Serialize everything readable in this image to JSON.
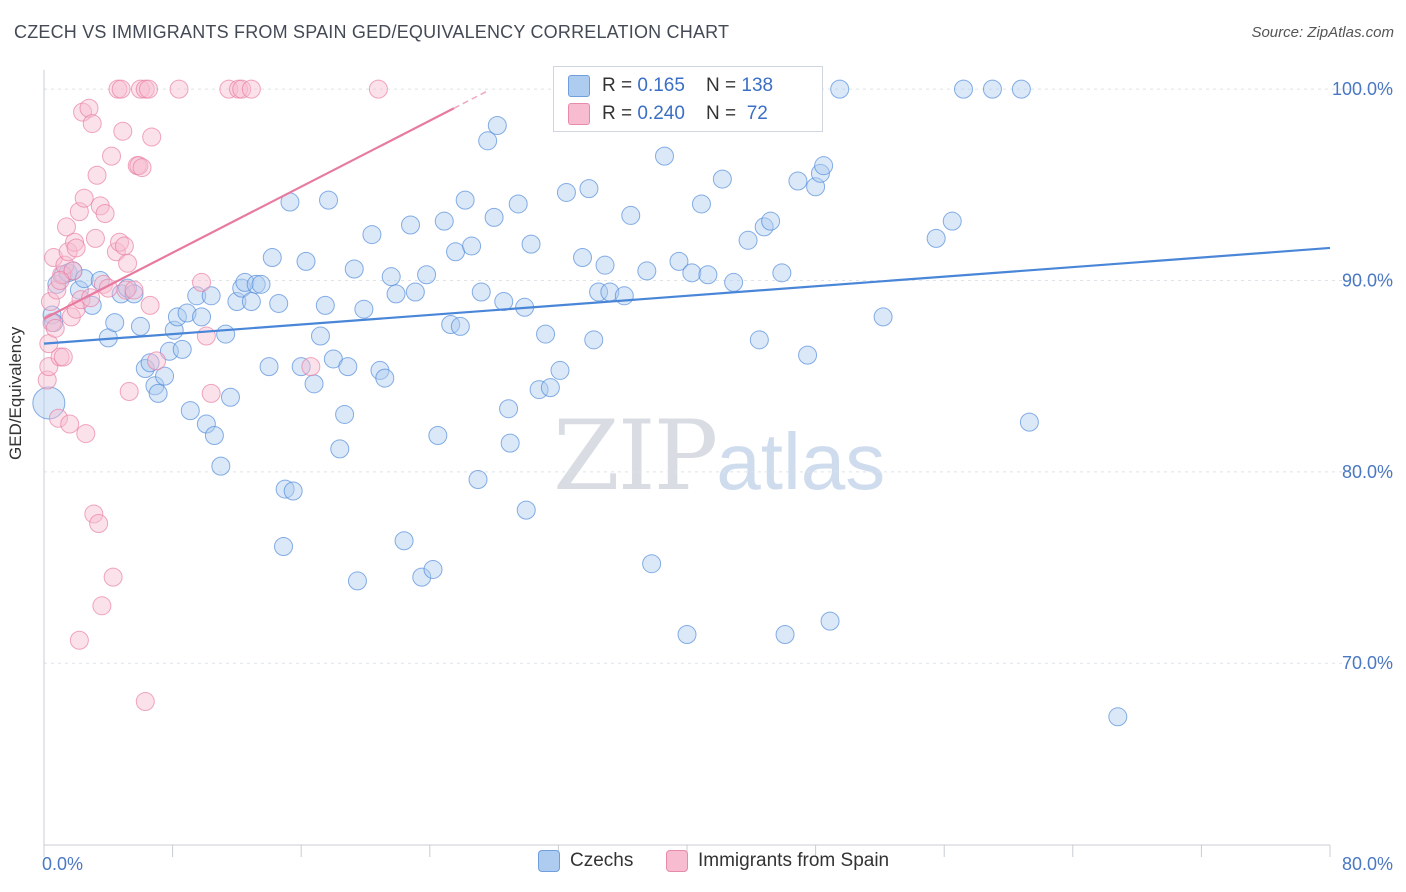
{
  "title": "CZECH VS IMMIGRANTS FROM SPAIN GED/EQUIVALENCY CORRELATION CHART",
  "source": "Source: ZipAtlas.com",
  "watermark": {
    "zip": "ZIP",
    "atlas": "atlas"
  },
  "legend": {
    "rows": [
      {
        "r_label": "R = ",
        "r_value": "0.165",
        "n_label": "N = ",
        "n_value": "138",
        "color": "#aecbf0"
      },
      {
        "r_label": "R = ",
        "r_value": "0.240",
        "n_label": "N = ",
        "n_value": " 72",
        "color": "#f7bcd0"
      }
    ]
  },
  "bottom_legend": [
    {
      "label": "Czechs",
      "color": "#aecbf0"
    },
    {
      "label": "Immigrants from Spain",
      "color": "#f7bcd0"
    }
  ],
  "chart_data": {
    "type": "scatter",
    "title": "CZECH VS IMMIGRANTS FROM SPAIN GED/EQUIVALENCY CORRELATION CHART",
    "xlabel": "",
    "ylabel": "GED/Equivalency",
    "xlim": [
      0,
      80
    ],
    "ylim": [
      60.5,
      101
    ],
    "x_tick_labels": [
      "0.0%",
      "80.0%"
    ],
    "y_ticks": [
      70,
      80,
      90,
      100
    ],
    "y_tick_labels": [
      "70.0%",
      "80.0%",
      "90.0%",
      "100.0%"
    ],
    "grid": true,
    "series": [
      {
        "name": "Czechs",
        "color": "#4a86d8",
        "fill": "#aecbf0",
        "trend": {
          "x0": 0,
          "y0": 86.7,
          "x1": 80,
          "y1": 91.7
        },
        "points": [
          [
            0.3,
            83.6
          ],
          [
            0.5,
            88.2
          ],
          [
            0.6,
            87.8
          ],
          [
            0.8,
            89.8
          ],
          [
            1.2,
            90.3
          ],
          [
            1.5,
            90.4
          ],
          [
            1.8,
            90.5
          ],
          [
            2.2,
            89.5
          ],
          [
            2.5,
            90.1
          ],
          [
            3.0,
            88.7
          ],
          [
            3.5,
            90.0
          ],
          [
            4.0,
            87.0
          ],
          [
            4.4,
            87.8
          ],
          [
            4.8,
            89.3
          ],
          [
            5.2,
            89.6
          ],
          [
            5.6,
            89.3
          ],
          [
            6.0,
            87.6
          ],
          [
            6.3,
            85.4
          ],
          [
            6.6,
            85.7
          ],
          [
            6.9,
            84.5
          ],
          [
            7.1,
            84.1
          ],
          [
            7.5,
            85.0
          ],
          [
            7.8,
            86.3
          ],
          [
            8.1,
            87.4
          ],
          [
            8.3,
            88.1
          ],
          [
            8.6,
            86.4
          ],
          [
            8.9,
            88.3
          ],
          [
            9.1,
            83.2
          ],
          [
            9.5,
            89.2
          ],
          [
            9.8,
            88.1
          ],
          [
            10.1,
            82.5
          ],
          [
            10.4,
            89.2
          ],
          [
            10.6,
            81.9
          ],
          [
            11.0,
            80.3
          ],
          [
            11.3,
            87.2
          ],
          [
            11.6,
            83.9
          ],
          [
            12.0,
            88.9
          ],
          [
            12.3,
            89.6
          ],
          [
            12.5,
            89.9
          ],
          [
            12.9,
            88.9
          ],
          [
            13.2,
            89.8
          ],
          [
            13.5,
            89.8
          ],
          [
            14.0,
            85.5
          ],
          [
            14.2,
            91.2
          ],
          [
            14.6,
            88.8
          ],
          [
            15.0,
            79.1
          ],
          [
            15.3,
            94.1
          ],
          [
            15.5,
            79.0
          ],
          [
            14.9,
            76.1
          ],
          [
            16.0,
            85.5
          ],
          [
            16.3,
            91.0
          ],
          [
            16.8,
            84.6
          ],
          [
            17.2,
            87.1
          ],
          [
            17.5,
            88.7
          ],
          [
            17.7,
            94.2
          ],
          [
            18.0,
            85.9
          ],
          [
            18.4,
            81.2
          ],
          [
            18.7,
            83.0
          ],
          [
            18.9,
            85.5
          ],
          [
            19.3,
            90.6
          ],
          [
            19.5,
            74.3
          ],
          [
            19.9,
            88.5
          ],
          [
            20.4,
            92.4
          ],
          [
            20.9,
            85.3
          ],
          [
            21.2,
            84.9
          ],
          [
            21.6,
            90.2
          ],
          [
            21.9,
            89.3
          ],
          [
            22.4,
            76.4
          ],
          [
            22.8,
            92.9
          ],
          [
            23.1,
            89.4
          ],
          [
            23.5,
            74.5
          ],
          [
            23.8,
            90.3
          ],
          [
            24.2,
            74.9
          ],
          [
            24.5,
            81.9
          ],
          [
            24.9,
            93.1
          ],
          [
            25.3,
            87.7
          ],
          [
            25.6,
            91.5
          ],
          [
            25.9,
            87.6
          ],
          [
            26.2,
            94.2
          ],
          [
            26.6,
            91.8
          ],
          [
            27.2,
            89.4
          ],
          [
            27.6,
            97.3
          ],
          [
            28.2,
            98.1
          ],
          [
            28.0,
            93.3
          ],
          [
            28.6,
            88.9
          ],
          [
            28.9,
            83.3
          ],
          [
            29.0,
            81.5
          ],
          [
            29.5,
            94.0
          ],
          [
            29.9,
            88.6
          ],
          [
            30.3,
            91.9
          ],
          [
            30.8,
            84.3
          ],
          [
            31.2,
            87.2
          ],
          [
            31.5,
            84.4
          ],
          [
            32.1,
            85.3
          ],
          [
            32.5,
            94.6
          ],
          [
            32.9,
            98.6
          ],
          [
            33.5,
            91.2
          ],
          [
            33.9,
            94.8
          ],
          [
            34.2,
            86.9
          ],
          [
            34.5,
            89.4
          ],
          [
            34.9,
            90.8
          ],
          [
            35.2,
            89.4
          ],
          [
            36.1,
            89.2
          ],
          [
            36.5,
            93.4
          ],
          [
            36.9,
            100.0
          ],
          [
            37.5,
            90.5
          ],
          [
            37.8,
            75.2
          ],
          [
            38.6,
            96.5
          ],
          [
            39.5,
            91.0
          ],
          [
            40.0,
            71.5
          ],
          [
            40.3,
            90.4
          ],
          [
            40.9,
            94.0
          ],
          [
            41.3,
            90.3
          ],
          [
            42.2,
            95.3
          ],
          [
            42.9,
            89.9
          ],
          [
            43.8,
            92.1
          ],
          [
            44.8,
            92.8
          ],
          [
            44.5,
            86.9
          ],
          [
            45.2,
            93.1
          ],
          [
            45.9,
            90.4
          ],
          [
            46.1,
            71.5
          ],
          [
            46.9,
            95.2
          ],
          [
            47.5,
            86.1
          ],
          [
            48.0,
            94.9
          ],
          [
            48.3,
            95.6
          ],
          [
            48.5,
            96.0
          ],
          [
            48.9,
            72.2
          ],
          [
            49.5,
            100.0
          ],
          [
            52.2,
            88.1
          ],
          [
            55.5,
            92.2
          ],
          [
            56.5,
            93.1
          ],
          [
            57.2,
            100.0
          ],
          [
            59.0,
            100.0
          ],
          [
            60.8,
            100.0
          ],
          [
            61.3,
            82.6
          ],
          [
            66.8,
            67.2
          ],
          [
            30.0,
            78.0
          ],
          [
            27.0,
            79.6
          ]
        ]
      },
      {
        "name": "Immigrants from Spain",
        "color": "#e87aa0",
        "fill": "#f7bcd0",
        "trend": {
          "x0": 0,
          "y0": 88.0,
          "x1": 25.5,
          "y1": 99.0
        },
        "points": [
          [
            0.2,
            84.8
          ],
          [
            0.3,
            86.7
          ],
          [
            0.3,
            85.5
          ],
          [
            0.4,
            88.9
          ],
          [
            0.5,
            87.8
          ],
          [
            0.6,
            91.2
          ],
          [
            0.7,
            87.5
          ],
          [
            0.8,
            89.5
          ],
          [
            0.9,
            82.8
          ],
          [
            1.0,
            86.0
          ],
          [
            1.1,
            90.3
          ],
          [
            1.2,
            86.0
          ],
          [
            1.3,
            90.8
          ],
          [
            1.4,
            92.8
          ],
          [
            1.5,
            91.5
          ],
          [
            1.6,
            82.5
          ],
          [
            1.7,
            88.1
          ],
          [
            1.8,
            90.5
          ],
          [
            1.9,
            92.0
          ],
          [
            2.0,
            91.7
          ],
          [
            2.0,
            88.5
          ],
          [
            2.2,
            71.2
          ],
          [
            2.2,
            93.6
          ],
          [
            2.3,
            89.0
          ],
          [
            2.4,
            98.8
          ],
          [
            2.5,
            94.3
          ],
          [
            2.6,
            82.0
          ],
          [
            2.8,
            99.0
          ],
          [
            2.9,
            89.1
          ],
          [
            3.0,
            98.2
          ],
          [
            3.1,
            77.8
          ],
          [
            3.2,
            92.2
          ],
          [
            3.3,
            95.5
          ],
          [
            3.4,
            77.3
          ],
          [
            3.5,
            93.9
          ],
          [
            3.6,
            73.0
          ],
          [
            3.7,
            89.8
          ],
          [
            3.8,
            93.5
          ],
          [
            4.0,
            89.6
          ],
          [
            4.2,
            96.5
          ],
          [
            4.3,
            74.5
          ],
          [
            4.5,
            91.5
          ],
          [
            4.6,
            100.0
          ],
          [
            4.7,
            92.0
          ],
          [
            4.8,
            100.0
          ],
          [
            4.9,
            97.8
          ],
          [
            5.0,
            91.8
          ],
          [
            5.1,
            89.5
          ],
          [
            5.2,
            90.9
          ],
          [
            5.3,
            84.2
          ],
          [
            5.6,
            89.5
          ],
          [
            5.8,
            96.0
          ],
          [
            5.9,
            96.0
          ],
          [
            6.0,
            100.0
          ],
          [
            6.1,
            95.9
          ],
          [
            6.3,
            100.0
          ],
          [
            6.3,
            68.0
          ],
          [
            6.5,
            100.0
          ],
          [
            6.6,
            88.7
          ],
          [
            6.7,
            97.5
          ],
          [
            7.0,
            85.8
          ],
          [
            8.4,
            100.0
          ],
          [
            9.8,
            89.9
          ],
          [
            10.1,
            87.1
          ],
          [
            10.4,
            84.1
          ],
          [
            11.5,
            100.0
          ],
          [
            12.1,
            100.0
          ],
          [
            12.3,
            100.0
          ],
          [
            12.9,
            100.0
          ],
          [
            16.6,
            85.5
          ],
          [
            20.8,
            100.0
          ],
          [
            1.0,
            90.0
          ]
        ]
      }
    ]
  }
}
